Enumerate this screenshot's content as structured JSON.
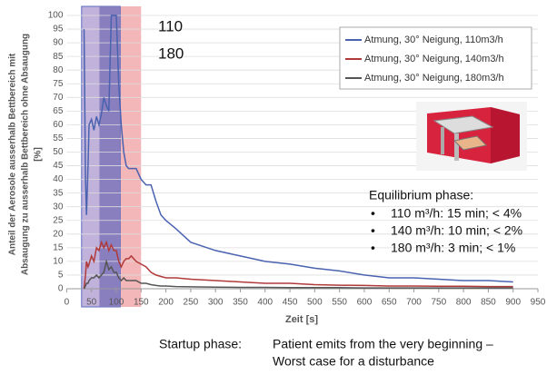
{
  "chart_data": {
    "type": "line",
    "y_label": [
      "Anteil der Aerosole ausserhalb Bettbereich mit",
      "Absaugung zu ausserhalb Bettbereich ohne Absaugung",
      "[%]"
    ],
    "x_label": "Zeit [s]",
    "annotations": [
      "110",
      "180"
    ],
    "x": [
      35,
      38,
      40,
      43,
      45,
      50,
      55,
      60,
      65,
      70,
      75,
      80,
      85,
      90,
      95,
      100,
      105,
      110,
      115,
      120,
      125,
      130,
      140,
      150,
      160,
      170,
      180,
      190,
      200,
      220,
      250,
      300,
      350,
      400,
      450,
      500,
      550,
      600,
      650,
      700,
      750,
      800,
      850,
      900
    ],
    "series": [
      {
        "name": "Atmung, 30° Neigung, 110m3/h",
        "color": "#4a62b0",
        "values": [
          95,
          40,
          27,
          45,
          60,
          62,
          58,
          63,
          60,
          64,
          70,
          67,
          65,
          100,
          100,
          100,
          75,
          60,
          50,
          45,
          44,
          44,
          44,
          40,
          38,
          38,
          32,
          27,
          25,
          22,
          17,
          14,
          12,
          10,
          9,
          7.5,
          6.5,
          5,
          4,
          4,
          3.5,
          3,
          3,
          2.5
        ]
      },
      {
        "name": "Atmung, 30° Neigung, 140m3/h",
        "color": "#b03a3a",
        "values": [
          0,
          5,
          10,
          8,
          9,
          12,
          10,
          15,
          14,
          17,
          15,
          17,
          14,
          16,
          14,
          14,
          10,
          8,
          10,
          11,
          11,
          12,
          10,
          9,
          8,
          6,
          5,
          4.5,
          4,
          4,
          3.5,
          3,
          2.5,
          2,
          2,
          1.5,
          1.3,
          1.2,
          1,
          1,
          0.9,
          0.9,
          0.8,
          0.8
        ]
      },
      {
        "name": "Atmung, 30° Neigung, 180m3/h",
        "color": "#555555",
        "values": [
          0,
          1,
          2,
          2,
          3,
          4,
          4,
          5,
          4,
          5,
          6,
          10,
          7,
          8,
          6,
          6,
          4,
          3,
          4,
          3,
          3,
          3,
          3,
          2,
          2,
          1.5,
          1.2,
          1,
          1,
          0.8,
          0.7,
          0.6,
          0.5,
          0.5,
          0.4,
          0.4,
          0.4,
          0.3,
          0.3,
          0.3,
          0.3,
          0.3,
          0.3,
          0.3
        ]
      }
    ],
    "shaded_ranges": [
      {
        "from": 30,
        "to": 150,
        "color": "#f1a9ad"
      },
      {
        "from": 30,
        "to": 108,
        "color": "#b7b2e0"
      },
      {
        "from": 66,
        "to": 108,
        "color": "#7f76b9"
      }
    ],
    "xlim": [
      0,
      950
    ],
    "xticks": [
      0,
      50,
      100,
      150,
      200,
      250,
      300,
      350,
      400,
      450,
      500,
      550,
      600,
      650,
      700,
      750,
      800,
      850,
      900,
      950
    ],
    "ylim": [
      0,
      100
    ],
    "yticks": [
      0,
      5,
      10,
      15,
      20,
      25,
      30,
      35,
      40,
      45,
      50,
      55,
      60,
      65,
      70,
      75,
      80,
      85,
      90,
      95,
      100
    ],
    "grid": true,
    "equilibrium": {
      "title": "Equilibrium phase:",
      "items": [
        "110 m³/h:  15 min;  < 4%",
        "140 m³/h:  10 min;  < 2%",
        "180 m³/h:    3 min;  < 1%"
      ]
    },
    "startup": {
      "label": "Startup phase:",
      "lines": [
        "Patient emits from the very beginning –",
        "Worst case for a disturbance"
      ]
    }
  }
}
